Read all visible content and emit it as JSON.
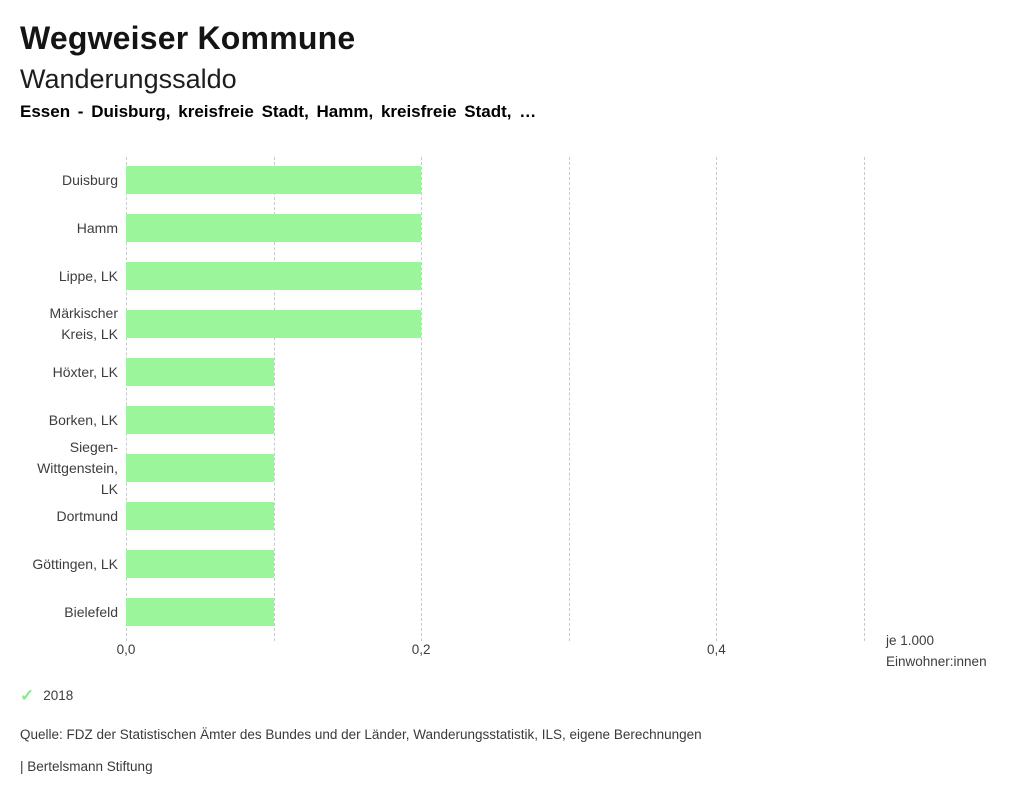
{
  "header": {
    "title": "Wegweiser Kommune",
    "subtitle": "Wanderungssaldo",
    "comparison": "Essen - Duisburg, kreisfreie Stadt, Hamm, kreisfreie Stadt, …"
  },
  "chart_data": {
    "type": "bar",
    "orientation": "horizontal",
    "title": "Wanderungssaldo",
    "categories": [
      "Duisburg",
      "Hamm",
      "Lippe, LK",
      "Märkischer Kreis, LK",
      "Höxter, LK",
      "Borken, LK",
      "Siegen-Wittgenstein, LK",
      "Dortmund",
      "Göttingen, LK",
      "Bielefeld"
    ],
    "category_label_lines": [
      [
        "Duisburg"
      ],
      [
        "Hamm"
      ],
      [
        "Lippe, LK"
      ],
      [
        "Märkischer",
        "Kreis, LK"
      ],
      [
        "Höxter, LK"
      ],
      [
        "Borken, LK"
      ],
      [
        "Siegen-",
        "Wittgenstein,",
        "LK"
      ],
      [
        "Dortmund"
      ],
      [
        "Göttingen, LK"
      ],
      [
        "Bielefeld"
      ]
    ],
    "series": [
      {
        "name": "2018",
        "values": [
          0.2,
          0.2,
          0.2,
          0.2,
          0.1,
          0.1,
          0.1,
          0.1,
          0.1,
          0.1
        ],
        "color": "#9af59b"
      }
    ],
    "xlabel_lines": [
      "je 1.000",
      "Einwohner:innen"
    ],
    "xlim": [
      0,
      0.5
    ],
    "xticks": [
      0,
      0.1,
      0.2,
      0.3,
      0.4,
      0.5
    ],
    "xtick_labels": [
      {
        "value": 0,
        "label": "0,0"
      },
      {
        "value": 0.2,
        "label": "0,2"
      },
      {
        "value": 0.4,
        "label": "0,4"
      }
    ],
    "grid": "vertical-dashed",
    "gridline_color": "#c9c9c9",
    "legend_position": "bottom-left"
  },
  "legend": {
    "items": [
      {
        "label": "2018",
        "check_color": "#8de98e"
      }
    ]
  },
  "footer": {
    "source": "Quelle: FDZ der Statistischen Ämter des Bundes und der Länder, Wanderungsstatistik, ILS, eigene Berechnungen",
    "attribution": "| Bertelsmann Stiftung"
  }
}
